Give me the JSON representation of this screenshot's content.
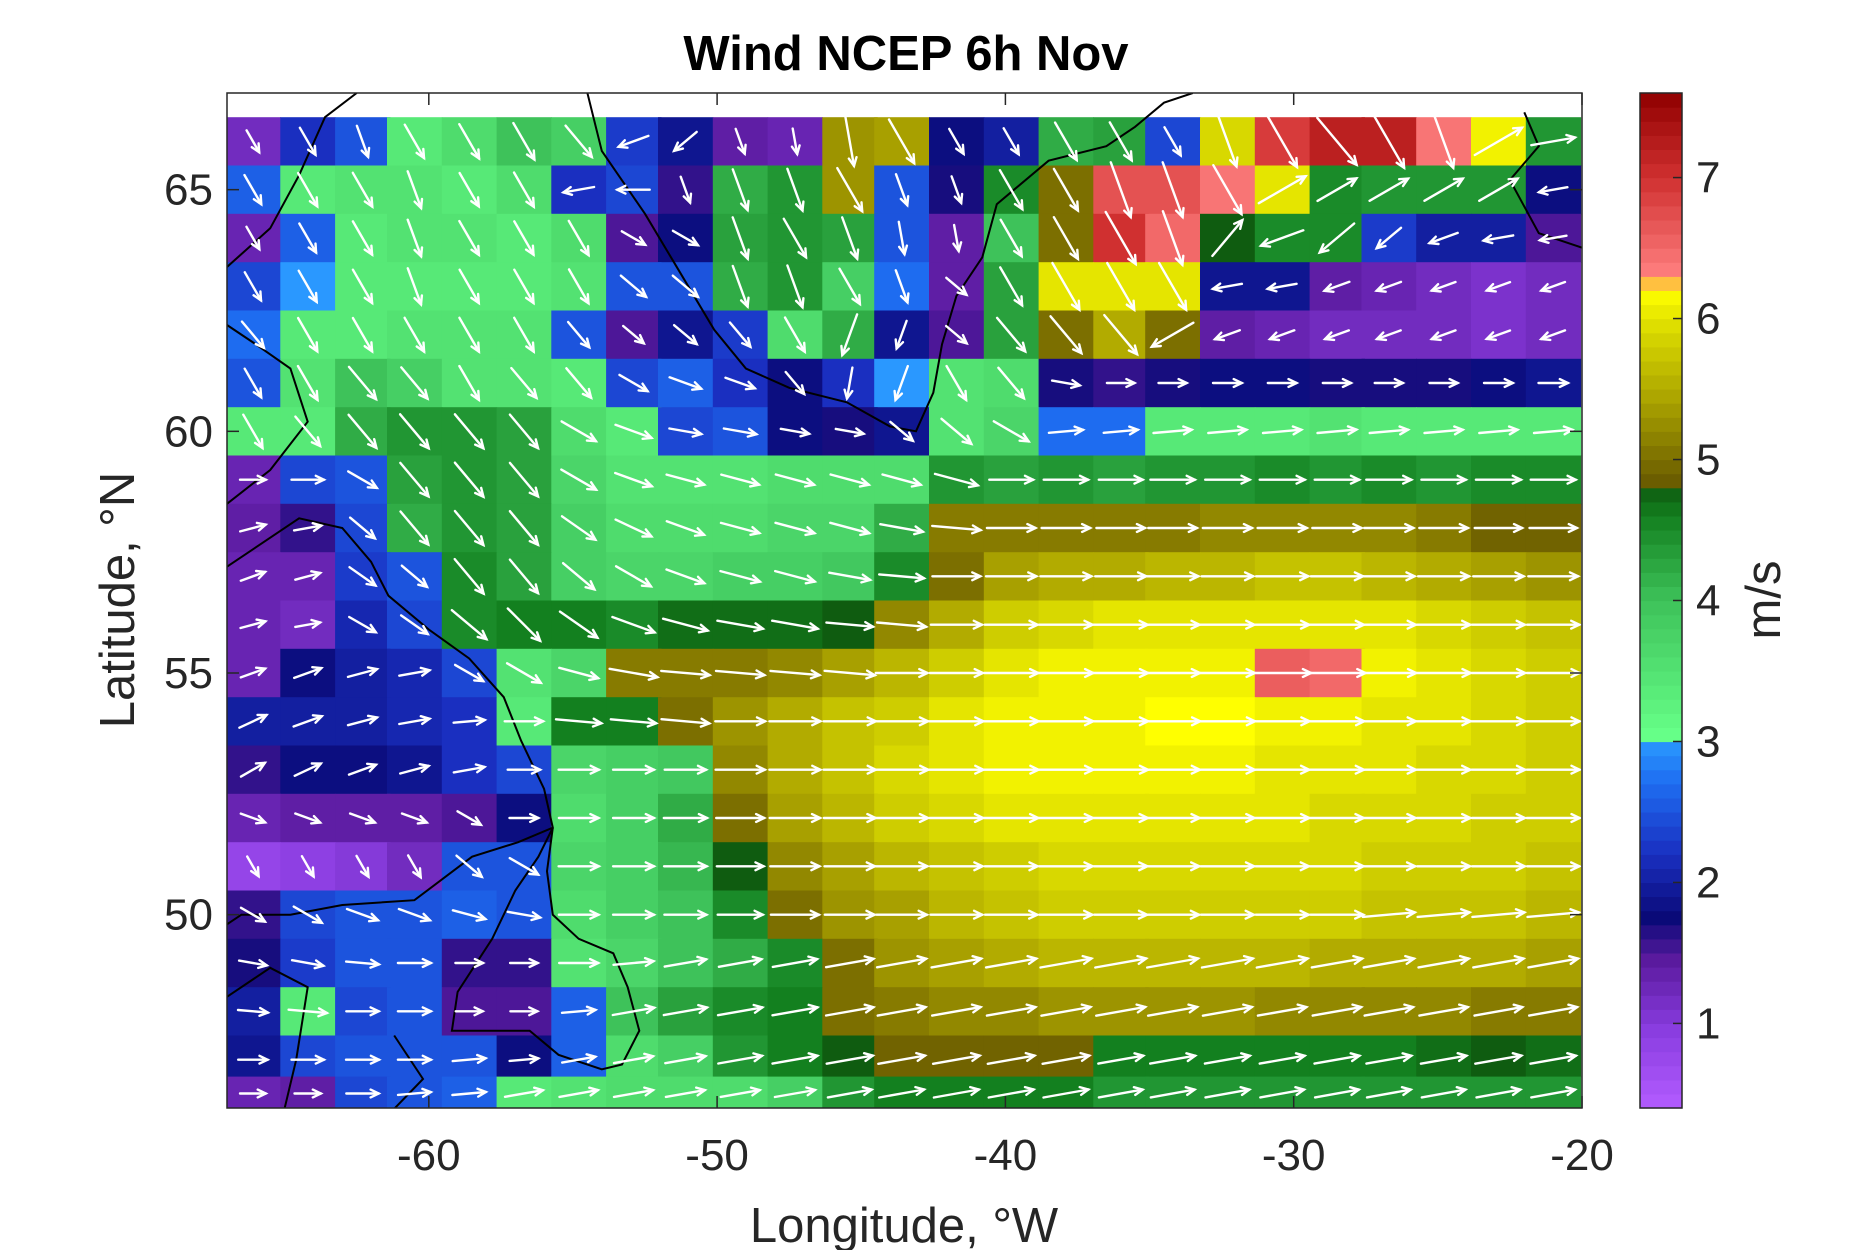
{
  "chart_data": {
    "type": "heatmap",
    "title": "Wind NCEP 6h Nov",
    "xlabel": "Longitude, °W",
    "ylabel": "Latitude, °N",
    "xlim": [
      -67,
      -20
    ],
    "ylim": [
      46,
      67
    ],
    "xticks": [
      -60,
      -50,
      -40,
      -30,
      -20
    ],
    "yticks": [
      50,
      55,
      60,
      65
    ],
    "colorbar": {
      "label": "m/s",
      "range": [
        0.4,
        7.6
      ],
      "ticks": [
        1,
        2,
        3,
        4,
        5,
        6,
        7
      ],
      "colormap": [
        "#b35cff",
        "#8a3de0",
        "#5a1a9e",
        "#0a0a78",
        "#1a2fc0",
        "#1e6cf0",
        "#2a98ff",
        "#66ff88",
        "#3ec25a",
        "#13801f",
        "#0f5c10",
        "#6b5d00",
        "#a8a000",
        "#d8d800",
        "#ffff00",
        "#ff8080",
        "#d03030",
        "#900000"
      ],
      "color_stops": [
        0.4,
        0.95,
        1.45,
        1.75,
        2.2,
        2.7,
        3.0,
        3.05,
        4.0,
        4.6,
        4.8,
        4.85,
        5.4,
        5.9,
        6.2,
        6.3,
        7.0,
        7.6
      ]
    },
    "field": {
      "description_rows": "speed (m/s) per grid cell, rows from north (66.5°N) to south (46.5°N), columns from 67°W to 21°W at 1.875° spacing",
      "lon": [
        -66.1,
        -64.2,
        -62.3,
        -60.5,
        -58.6,
        -56.7,
        -54.8,
        -52.9,
        -51.1,
        -49.2,
        -47.3,
        -45.4,
        -43.6,
        -41.7,
        -39.8,
        -37.9,
        -36.0,
        -34.2,
        -32.3,
        -30.4,
        -28.5,
        -26.7,
        -24.8,
        -22.9,
        -21.0
      ],
      "lat": [
        66.0,
        65.0,
        64.0,
        63.0,
        62.0,
        61.0,
        60.0,
        59.0,
        58.0,
        57.0,
        56.0,
        55.0,
        54.0,
        53.0,
        52.0,
        51.0,
        50.0,
        49.0,
        48.0,
        47.0,
        46.3
      ],
      "speed": [
        [
          1.2,
          2.2,
          2.5,
          3.4,
          3.6,
          4.0,
          3.8,
          2.3,
          1.9,
          1.4,
          1.3,
          5.3,
          5.4,
          1.8,
          2.0,
          4.2,
          4.3,
          2.4,
          5.9,
          6.9,
          7.2,
          7.2,
          6.4,
          6.1,
          4.4
        ],
        [
          2.6,
          3.4,
          3.5,
          3.5,
          3.4,
          3.6,
          2.2,
          2.4,
          1.6,
          4.2,
          4.4,
          5.3,
          2.5,
          1.7,
          4.5,
          5.0,
          6.7,
          6.7,
          6.4,
          6.0,
          4.5,
          4.4,
          4.4,
          4.4,
          1.8
        ],
        [
          1.3,
          2.6,
          3.4,
          3.5,
          3.5,
          3.4,
          3.6,
          1.5,
          1.8,
          4.3,
          4.4,
          4.3,
          2.5,
          1.4,
          4.0,
          5.0,
          7.0,
          6.5,
          4.8,
          4.5,
          4.5,
          2.3,
          2.0,
          2.0,
          1.5
        ],
        [
          2.4,
          3.0,
          3.4,
          3.4,
          3.4,
          3.4,
          3.5,
          2.5,
          2.5,
          4.2,
          4.4,
          3.8,
          2.7,
          1.4,
          4.3,
          6.0,
          6.0,
          6.0,
          1.9,
          1.9,
          1.4,
          1.3,
          1.2,
          1.1,
          1.2
        ],
        [
          2.7,
          3.4,
          3.4,
          3.5,
          3.5,
          3.5,
          2.5,
          1.5,
          1.9,
          2.3,
          3.6,
          4.2,
          1.9,
          1.5,
          4.3,
          5.0,
          5.5,
          5.0,
          1.4,
          1.3,
          1.2,
          1.2,
          1.2,
          1.1,
          1.2
        ],
        [
          2.5,
          3.5,
          4.0,
          3.8,
          3.5,
          3.5,
          3.4,
          2.4,
          2.6,
          2.2,
          1.8,
          2.2,
          3.0,
          3.5,
          3.6,
          1.7,
          1.6,
          1.7,
          1.8,
          1.8,
          1.7,
          1.7,
          1.7,
          1.8,
          1.9
        ],
        [
          3.4,
          3.4,
          4.2,
          4.4,
          4.4,
          4.3,
          3.6,
          3.4,
          2.4,
          2.5,
          1.8,
          1.7,
          1.9,
          3.5,
          3.7,
          2.7,
          2.7,
          3.4,
          3.4,
          3.4,
          3.5,
          3.4,
          3.4,
          3.4,
          3.4
        ],
        [
          1.3,
          2.4,
          2.5,
          4.3,
          4.4,
          4.3,
          3.7,
          3.5,
          3.5,
          3.5,
          3.6,
          3.6,
          3.6,
          4.4,
          4.3,
          4.4,
          4.3,
          4.4,
          4.4,
          4.5,
          4.4,
          4.5,
          4.4,
          4.5,
          4.5
        ],
        [
          1.4,
          1.6,
          2.4,
          4.2,
          4.4,
          4.3,
          3.8,
          3.6,
          3.6,
          3.6,
          3.7,
          3.7,
          4.2,
          5.1,
          5.1,
          5.1,
          5.1,
          5.1,
          5.2,
          5.2,
          5.2,
          5.2,
          5.1,
          4.9,
          4.9
        ],
        [
          1.3,
          1.3,
          2.3,
          2.5,
          4.5,
          4.3,
          3.8,
          3.7,
          3.7,
          3.8,
          3.8,
          3.9,
          4.5,
          5.0,
          5.4,
          5.5,
          5.5,
          5.6,
          5.6,
          5.7,
          5.7,
          5.6,
          5.5,
          5.4,
          5.3
        ],
        [
          1.3,
          1.2,
          2.1,
          2.4,
          4.5,
          4.6,
          4.6,
          4.5,
          4.7,
          4.7,
          4.7,
          4.8,
          5.2,
          5.5,
          5.8,
          5.9,
          6.0,
          6.0,
          6.0,
          6.0,
          6.0,
          6.0,
          5.9,
          5.8,
          5.7
        ],
        [
          1.3,
          1.8,
          2.0,
          2.1,
          2.4,
          3.5,
          3.7,
          5.1,
          5.1,
          5.1,
          5.2,
          5.4,
          5.6,
          5.8,
          6.0,
          6.1,
          6.1,
          6.1,
          6.1,
          6.6,
          6.5,
          6.1,
          6.0,
          5.9,
          5.8
        ],
        [
          2.0,
          2.0,
          2.0,
          2.1,
          2.2,
          3.4,
          4.6,
          4.6,
          5.0,
          5.3,
          5.5,
          5.7,
          5.8,
          6.0,
          6.1,
          6.1,
          6.1,
          6.2,
          6.2,
          6.1,
          6.1,
          6.0,
          6.0,
          5.9,
          5.8
        ],
        [
          1.6,
          1.8,
          1.8,
          1.9,
          2.2,
          2.4,
          3.7,
          3.8,
          3.9,
          5.2,
          5.5,
          5.7,
          5.9,
          6.0,
          6.1,
          6.1,
          6.1,
          6.1,
          6.1,
          6.0,
          6.0,
          6.0,
          5.9,
          5.9,
          5.8
        ],
        [
          1.3,
          1.4,
          1.4,
          1.4,
          1.5,
          1.8,
          3.6,
          3.8,
          4.2,
          5.0,
          5.4,
          5.6,
          5.8,
          5.9,
          6.0,
          6.0,
          6.0,
          6.0,
          6.0,
          6.0,
          5.9,
          5.9,
          5.9,
          5.8,
          5.8
        ],
        [
          0.8,
          0.9,
          1.0,
          1.2,
          2.5,
          2.5,
          3.7,
          3.8,
          4.1,
          4.8,
          5.2,
          5.4,
          5.6,
          5.7,
          5.8,
          5.9,
          5.9,
          5.9,
          5.9,
          5.9,
          5.9,
          5.8,
          5.8,
          5.8,
          5.7
        ],
        [
          1.6,
          2.4,
          2.5,
          2.5,
          2.6,
          2.5,
          3.6,
          3.8,
          4.0,
          4.5,
          5.0,
          5.3,
          5.4,
          5.6,
          5.7,
          5.8,
          5.8,
          5.8,
          5.8,
          5.8,
          5.8,
          5.7,
          5.7,
          5.7,
          5.6
        ],
        [
          1.7,
          2.3,
          2.5,
          2.5,
          1.6,
          1.6,
          3.5,
          3.7,
          4.0,
          4.2,
          4.5,
          5.0,
          5.3,
          5.4,
          5.5,
          5.6,
          5.6,
          5.6,
          5.6,
          5.6,
          5.5,
          5.5,
          5.5,
          5.5,
          5.4
        ],
        [
          2.0,
          3.4,
          2.4,
          2.5,
          1.5,
          1.5,
          2.6,
          4.0,
          4.3,
          4.5,
          4.6,
          5.0,
          5.1,
          5.2,
          5.2,
          5.3,
          5.3,
          5.3,
          5.3,
          5.2,
          5.2,
          5.2,
          5.2,
          5.1,
          5.1
        ],
        [
          1.9,
          2.4,
          2.5,
          2.5,
          2.5,
          1.8,
          2.6,
          3.6,
          3.8,
          4.4,
          4.6,
          4.8,
          4.9,
          4.9,
          4.9,
          4.9,
          4.6,
          4.6,
          4.6,
          4.6,
          4.6,
          4.6,
          4.7,
          4.8,
          4.7
        ],
        [
          1.3,
          1.4,
          2.4,
          2.5,
          2.6,
          3.4,
          3.5,
          3.6,
          3.6,
          3.6,
          3.8,
          4.4,
          4.6,
          4.6,
          4.6,
          4.6,
          4.4,
          4.4,
          4.4,
          4.4,
          4.4,
          4.4,
          4.4,
          4.4,
          4.4
        ]
      ],
      "wind_direction_deg": [
        [
          300,
          300,
          290,
          300,
          300,
          300,
          310,
          200,
          220,
          290,
          280,
          280,
          300,
          300,
          300,
          300,
          300,
          300,
          290,
          300,
          310,
          300,
          290,
          30,
          10
        ],
        [
          300,
          300,
          300,
          290,
          300,
          300,
          190,
          180,
          290,
          290,
          290,
          300,
          290,
          290,
          300,
          300,
          290,
          290,
          300,
          30,
          30,
          30,
          30,
          30,
          190
        ],
        [
          300,
          300,
          300,
          290,
          300,
          300,
          300,
          330,
          330,
          290,
          300,
          290,
          280,
          280,
          300,
          300,
          300,
          290,
          50,
          200,
          220,
          220,
          200,
          190,
          190
        ],
        [
          300,
          300,
          300,
          290,
          300,
          300,
          300,
          320,
          320,
          290,
          290,
          300,
          290,
          320,
          300,
          300,
          300,
          300,
          190,
          190,
          200,
          200,
          200,
          200,
          200
        ],
        [
          310,
          300,
          300,
          300,
          300,
          300,
          310,
          320,
          320,
          310,
          300,
          250,
          250,
          320,
          310,
          310,
          310,
          210,
          200,
          200,
          200,
          200,
          200,
          200,
          200
        ],
        [
          300,
          300,
          310,
          310,
          300,
          310,
          310,
          330,
          340,
          340,
          310,
          260,
          250,
          300,
          310,
          350,
          0,
          0,
          0,
          0,
          0,
          0,
          0,
          0,
          0
        ],
        [
          300,
          310,
          310,
          310,
          310,
          310,
          330,
          340,
          350,
          350,
          350,
          350,
          320,
          320,
          330,
          5,
          5,
          5,
          5,
          5,
          5,
          5,
          5,
          5,
          5
        ],
        [
          0,
          0,
          330,
          310,
          310,
          310,
          330,
          340,
          345,
          345,
          345,
          345,
          345,
          345,
          0,
          0,
          0,
          0,
          0,
          0,
          0,
          0,
          0,
          0,
          0
        ],
        [
          15,
          10,
          320,
          310,
          310,
          310,
          325,
          335,
          340,
          345,
          345,
          345,
          350,
          355,
          0,
          0,
          0,
          0,
          0,
          0,
          0,
          0,
          0,
          0,
          0
        ],
        [
          20,
          15,
          325,
          320,
          310,
          310,
          320,
          330,
          340,
          345,
          345,
          350,
          355,
          0,
          0,
          0,
          0,
          0,
          0,
          0,
          0,
          0,
          0,
          0,
          0
        ],
        [
          15,
          10,
          330,
          325,
          320,
          315,
          325,
          340,
          345,
          350,
          350,
          355,
          355,
          0,
          0,
          0,
          0,
          0,
          0,
          0,
          0,
          0,
          0,
          0,
          0
        ],
        [
          20,
          20,
          15,
          10,
          330,
          330,
          345,
          350,
          355,
          355,
          355,
          355,
          0,
          0,
          0,
          0,
          0,
          0,
          0,
          0,
          0,
          0,
          0,
          0,
          0
        ],
        [
          25,
          20,
          15,
          10,
          5,
          0,
          355,
          355,
          355,
          0,
          0,
          0,
          0,
          0,
          0,
          0,
          0,
          0,
          0,
          0,
          0,
          0,
          0,
          0,
          0
        ],
        [
          30,
          25,
          20,
          15,
          10,
          0,
          0,
          0,
          0,
          0,
          0,
          0,
          0,
          0,
          0,
          0,
          0,
          0,
          0,
          0,
          0,
          0,
          0,
          0,
          0
        ],
        [
          340,
          340,
          340,
          340,
          330,
          0,
          0,
          0,
          0,
          0,
          0,
          0,
          0,
          0,
          0,
          0,
          0,
          0,
          0,
          0,
          0,
          0,
          0,
          0,
          0
        ],
        [
          300,
          300,
          300,
          300,
          320,
          330,
          0,
          0,
          0,
          0,
          0,
          0,
          0,
          0,
          0,
          0,
          0,
          0,
          0,
          0,
          0,
          0,
          0,
          0,
          0
        ],
        [
          330,
          330,
          340,
          340,
          345,
          350,
          0,
          0,
          0,
          0,
          0,
          0,
          0,
          0,
          0,
          0,
          0,
          0,
          0,
          0,
          0,
          5,
          5,
          5,
          5
        ],
        [
          350,
          350,
          355,
          0,
          0,
          0,
          0,
          5,
          10,
          10,
          10,
          10,
          10,
          10,
          10,
          10,
          10,
          10,
          10,
          10,
          10,
          10,
          10,
          10,
          10
        ],
        [
          355,
          355,
          0,
          0,
          0,
          0,
          5,
          10,
          10,
          10,
          10,
          10,
          10,
          10,
          10,
          10,
          10,
          10,
          10,
          10,
          10,
          10,
          10,
          10,
          10
        ],
        [
          0,
          0,
          0,
          0,
          5,
          5,
          10,
          10,
          10,
          10,
          10,
          10,
          10,
          10,
          10,
          10,
          10,
          10,
          10,
          10,
          10,
          10,
          10,
          10,
          10
        ],
        [
          0,
          0,
          0,
          5,
          5,
          10,
          10,
          10,
          10,
          10,
          10,
          10,
          10,
          10,
          10,
          10,
          10,
          10,
          10,
          10,
          10,
          10,
          10,
          10,
          10
        ]
      ]
    }
  }
}
